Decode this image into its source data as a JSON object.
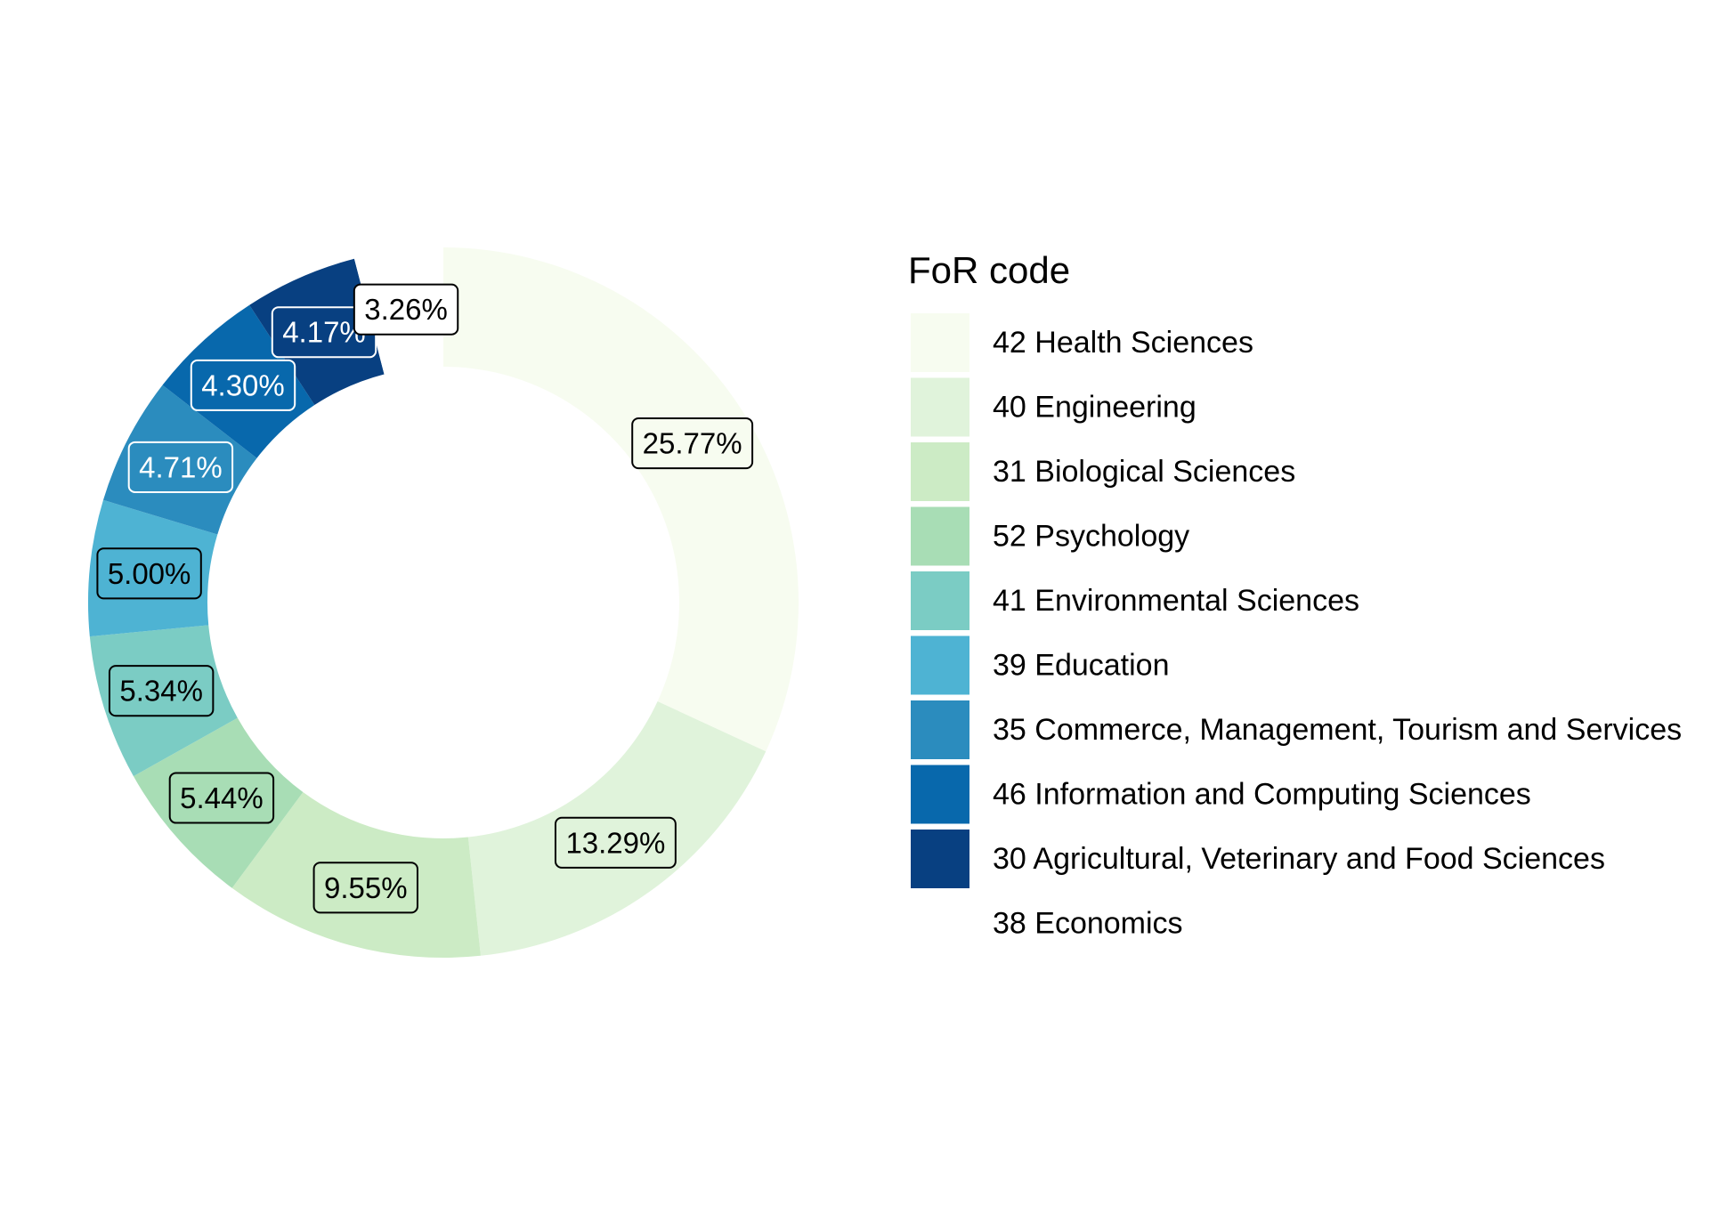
{
  "chart_data": {
    "type": "pie",
    "legend_title": "FoR code",
    "legend_position": "right",
    "slices": [
      {
        "label": "42 Health Sciences",
        "value": 25.77,
        "value_label": "25.77%",
        "color": "#f7fcf0",
        "label_text_color": "#000000"
      },
      {
        "label": "40 Engineering",
        "value": 13.29,
        "value_label": "13.29%",
        "color": "#e0f3db",
        "label_text_color": "#000000"
      },
      {
        "label": "31 Biological Sciences",
        "value": 9.55,
        "value_label": "9.55%",
        "color": "#ccebc5",
        "label_text_color": "#000000"
      },
      {
        "label": "52 Psychology",
        "value": 5.44,
        "value_label": "5.44%",
        "color": "#a8ddb5",
        "label_text_color": "#000000"
      },
      {
        "label": "41 Environmental Sciences",
        "value": 5.34,
        "value_label": "5.34%",
        "color": "#7bccc4",
        "label_text_color": "#000000"
      },
      {
        "label": "39 Education",
        "value": 5.0,
        "value_label": "5.00%",
        "color": "#4eb3d3",
        "label_text_color": "#000000"
      },
      {
        "label": "35 Commerce, Management, Tourism and Services",
        "value": 4.71,
        "value_label": "4.71%",
        "color": "#2b8cbe",
        "label_text_color": "#ffffff"
      },
      {
        "label": "46 Information and Computing Sciences",
        "value": 4.3,
        "value_label": "4.30%",
        "color": "#0868ac",
        "label_text_color": "#ffffff"
      },
      {
        "label": "30 Agricultural, Veterinary and Food Sciences",
        "value": 4.17,
        "value_label": "4.17%",
        "color": "#084081",
        "label_text_color": "#ffffff"
      },
      {
        "label": "38 Economics",
        "value": 3.26,
        "value_label": "3.26%",
        "color": "#ffffff",
        "label_text_color": "#000000"
      }
    ]
  }
}
